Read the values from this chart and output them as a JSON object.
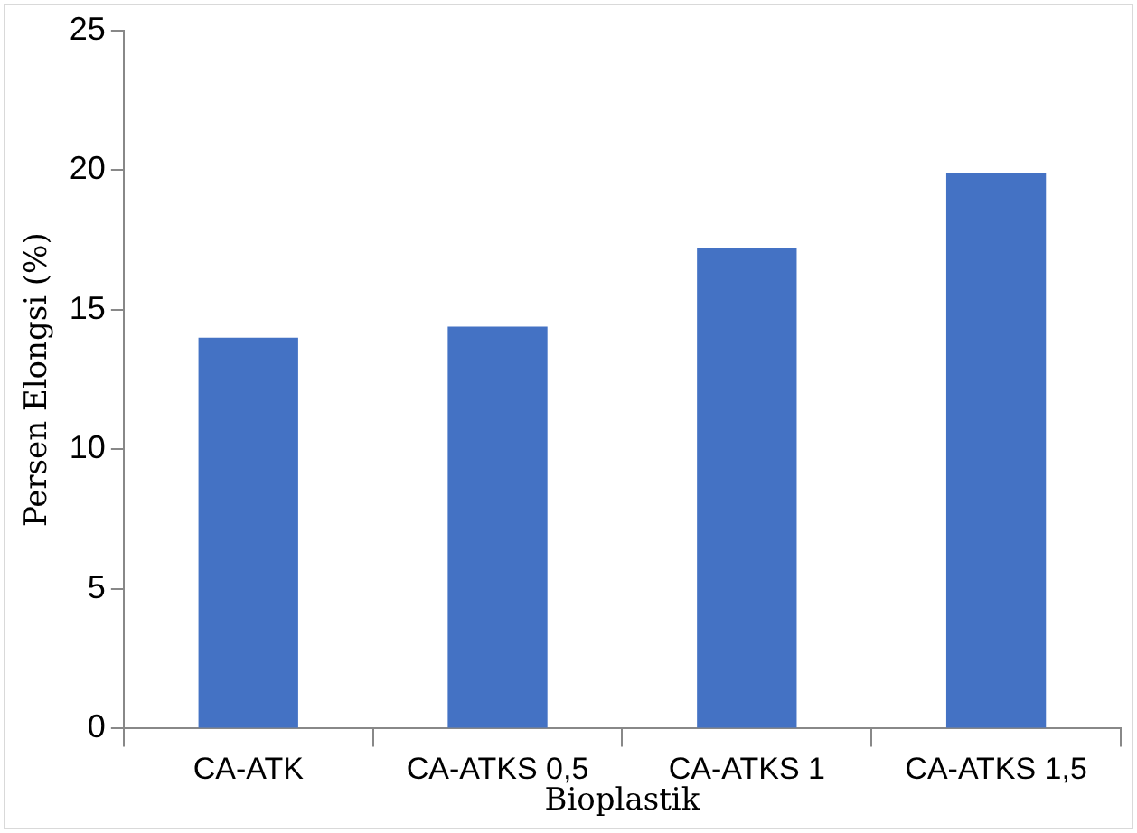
{
  "chart_data": {
    "type": "bar",
    "xlabel": "Bioplastik",
    "ylabel": "Persen Elongsi (%)",
    "categories": [
      "CA-ATK",
      "CA-ATKS 0,5",
      "CA-ATKS 1",
      "CA-ATKS 1,5"
    ],
    "values": [
      14.0,
      14.4,
      17.2,
      19.9
    ],
    "color": "#4472c4",
    "ylim": [
      0,
      25
    ],
    "yticks": [
      0,
      5,
      10,
      15,
      20,
      25
    ],
    "grid": false,
    "legend": false
  }
}
